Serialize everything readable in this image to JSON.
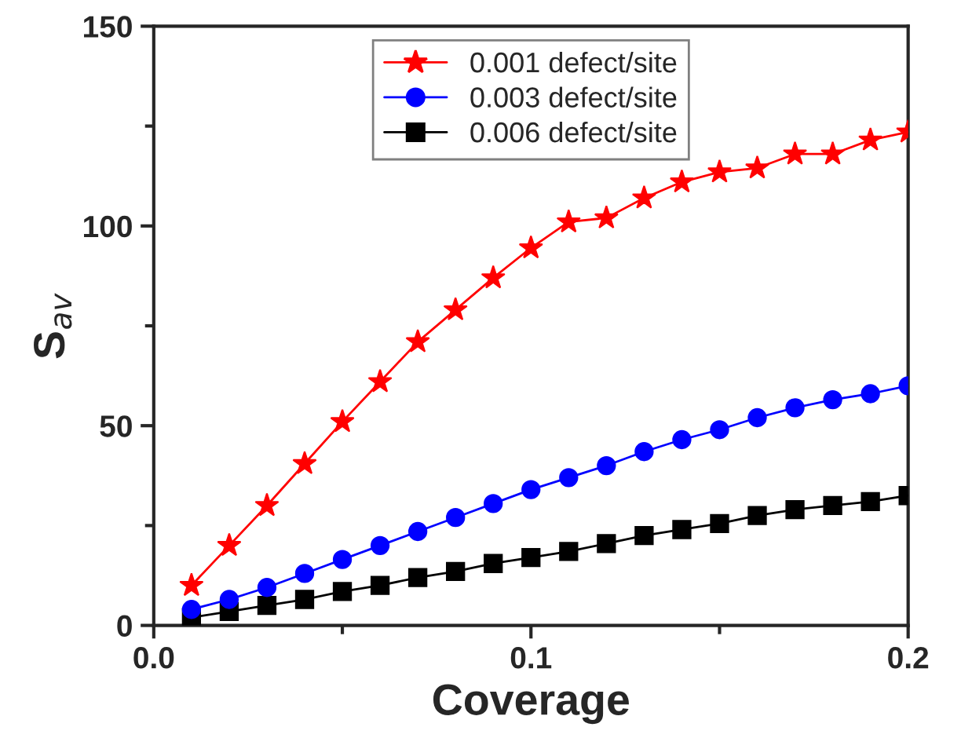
{
  "chart_data": {
    "type": "line",
    "xlabel": "Coverage",
    "ylabel": "S$_{av}$",
    "x": [
      0.01,
      0.02,
      0.03,
      0.04,
      0.05,
      0.06,
      0.07,
      0.08,
      0.09,
      0.1,
      0.11,
      0.12,
      0.13,
      0.14,
      0.15,
      0.16,
      0.17,
      0.18,
      0.19,
      0.2
    ],
    "series": [
      {
        "name": "0.001 defect/site",
        "color": "#ff0000",
        "marker": "star",
        "values": [
          10,
          20,
          30,
          40.5,
          51,
          61,
          71,
          79,
          87,
          94.5,
          101,
          102,
          107,
          111,
          113.5,
          114.5,
          118,
          118,
          121.5,
          123.5
        ]
      },
      {
        "name": "0.003 defect/site",
        "color": "#0000ff",
        "marker": "circle",
        "values": [
          4,
          6.5,
          9.5,
          13,
          16.5,
          20,
          23.5,
          27,
          30.5,
          34,
          37,
          40,
          43.5,
          46.5,
          49,
          52,
          54.5,
          56.5,
          58,
          60
        ]
      },
      {
        "name": "0.006 defect/site",
        "color": "#000000",
        "marker": "square",
        "values": [
          2,
          3.5,
          5,
          6.5,
          8.5,
          10,
          12,
          13.5,
          15.5,
          17,
          18.5,
          20.5,
          22.5,
          24,
          25.5,
          27.5,
          29,
          30,
          31,
          32.5
        ]
      }
    ],
    "xlim": [
      0.0,
      0.2
    ],
    "xticks": [
      {
        "value": 0.0,
        "label": "0.0"
      },
      0.1,
      0.2
    ],
    "ylim": [
      0,
      150
    ],
    "yticks": [
      0,
      50,
      100,
      150
    ],
    "grid": false,
    "legend": "top",
    "line_style": "solid"
  }
}
